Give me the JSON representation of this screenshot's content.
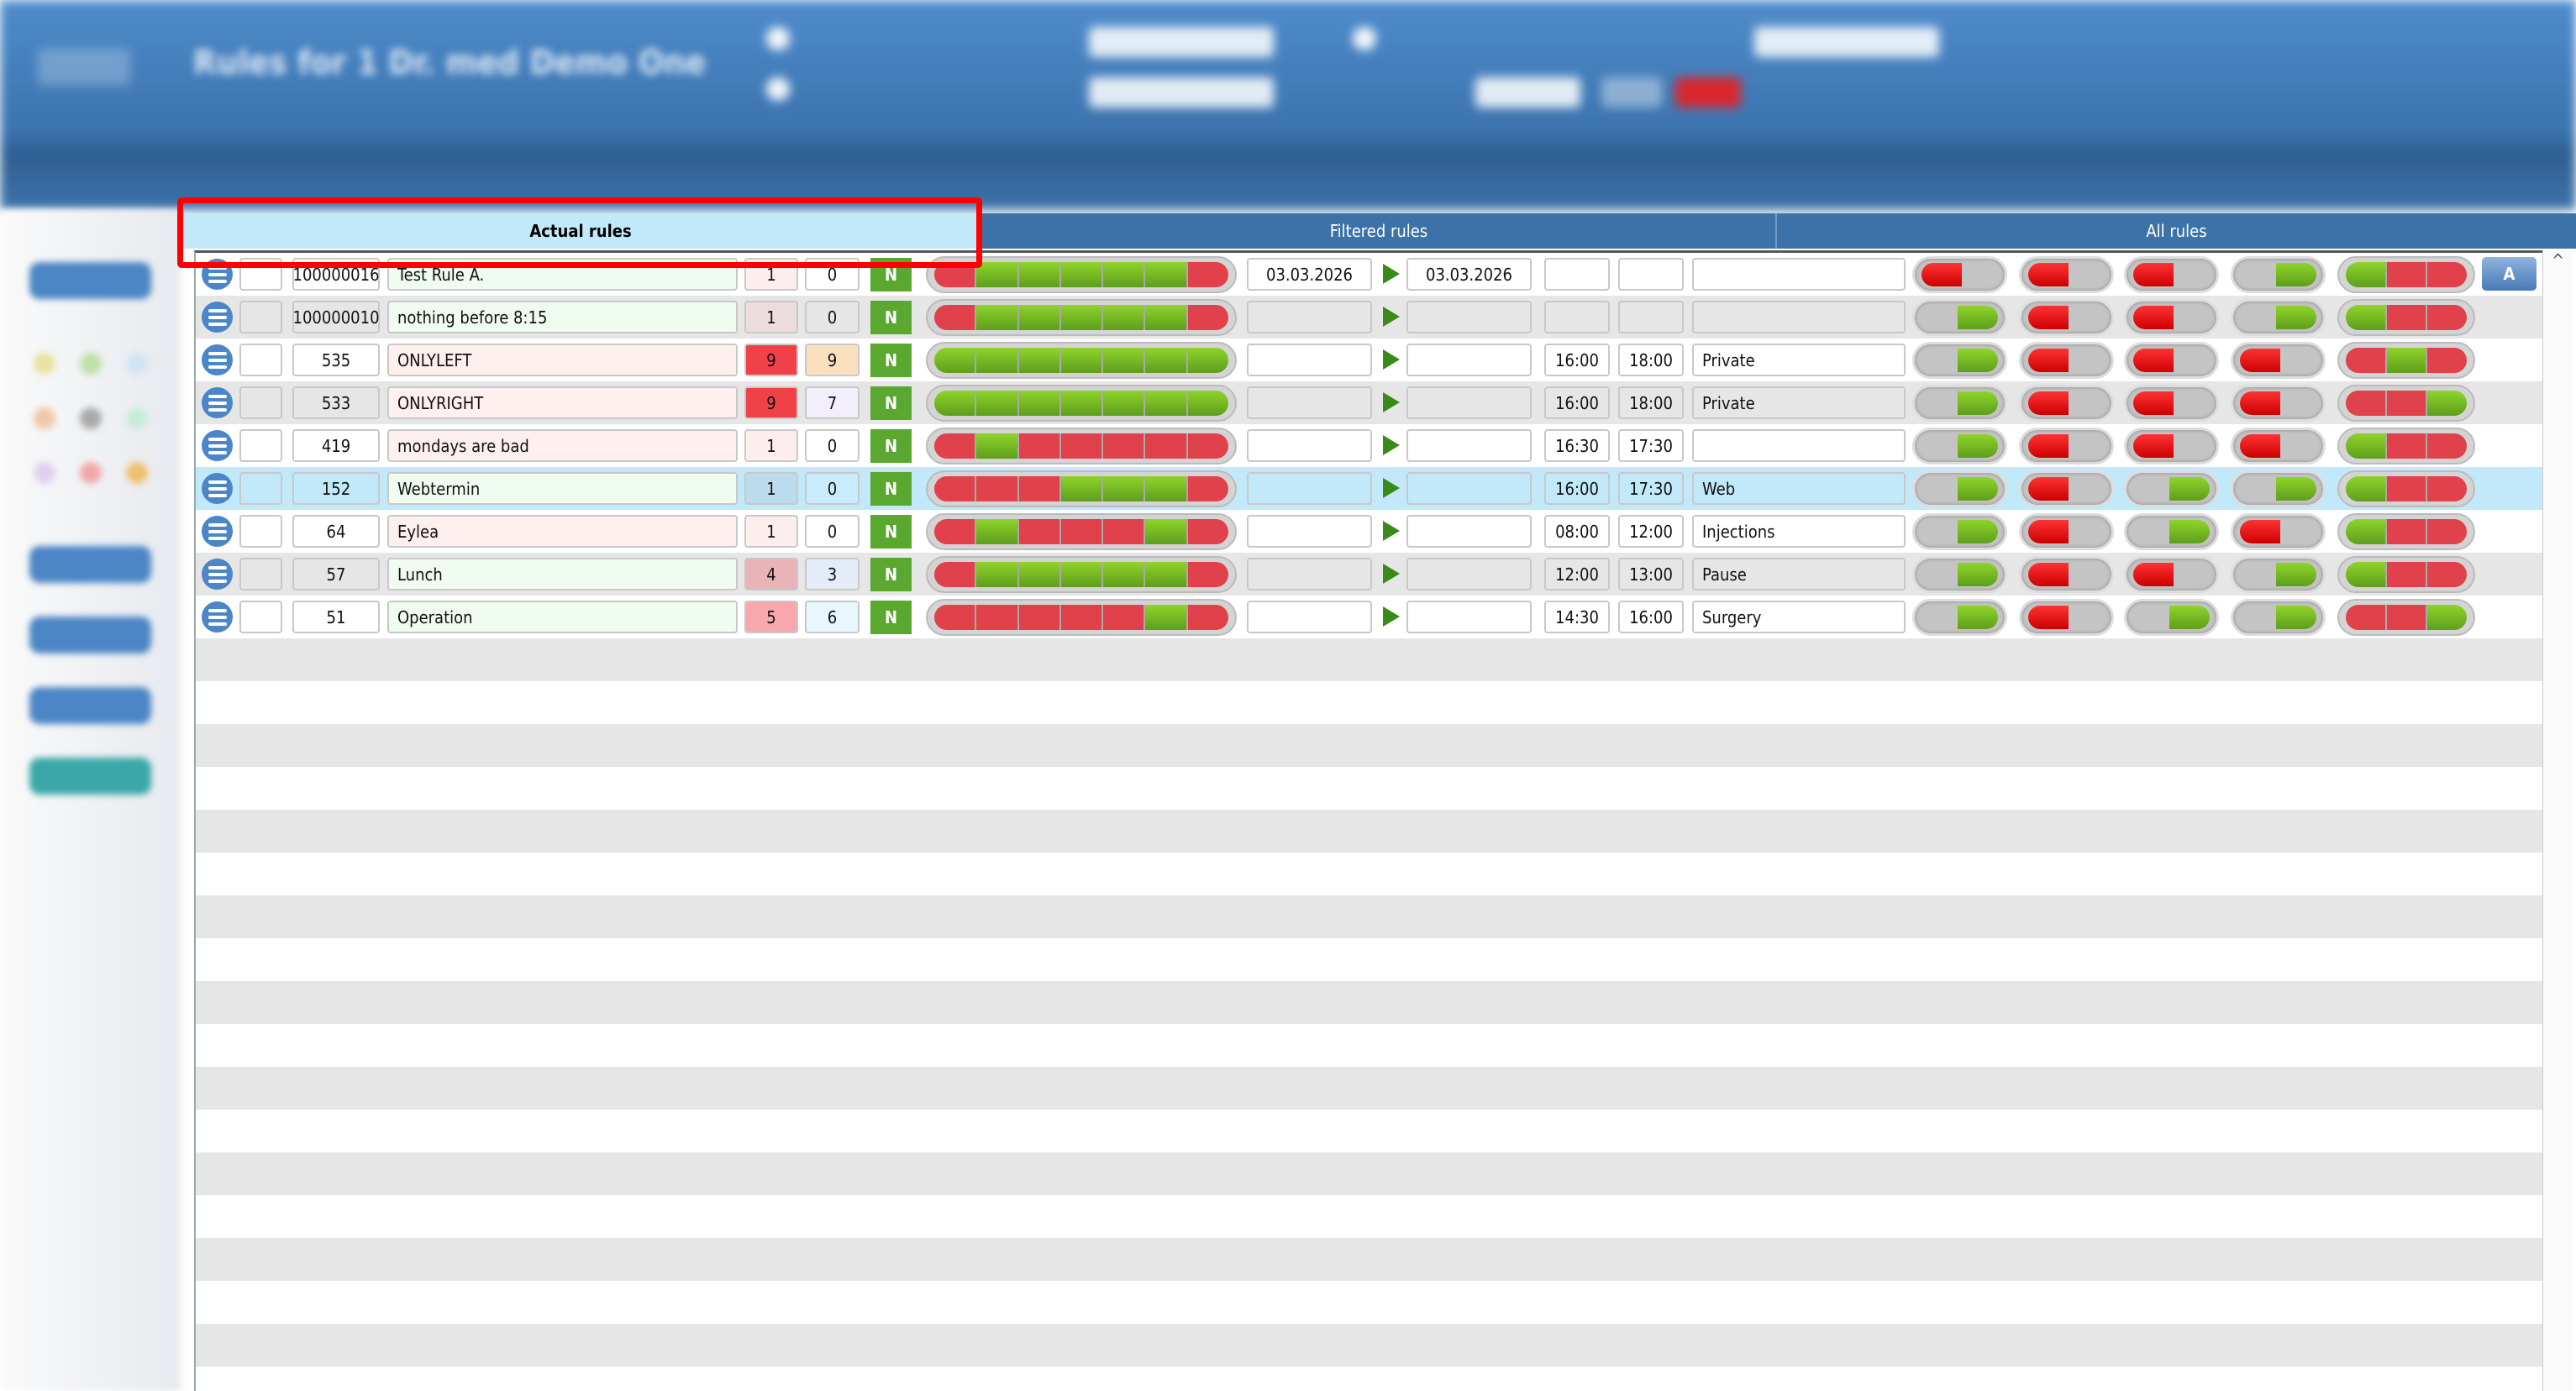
{
  "header": {
    "title": "Rules for 1 Dr. med Demo One"
  },
  "tabs": [
    {
      "label": "Actual rules",
      "active": true
    },
    {
      "label": "Filtered rules",
      "active": false
    },
    {
      "label": "All rules",
      "active": false
    }
  ],
  "colors": {
    "green": "#5aa830",
    "red": "#e0414a",
    "selected_row": "#c2e9fa",
    "tab_bar": "#3d72a8"
  },
  "action_button_label": "A",
  "n_label": "N",
  "rows": [
    {
      "id": "100000016",
      "name": "Test Rule A.",
      "c1": "1",
      "c2": "0",
      "week": [
        0,
        1,
        1,
        1,
        1,
        1,
        0
      ],
      "date_from": "03.03.2026",
      "date_to": "03.03.2026",
      "time_from": "",
      "time_to": "",
      "label": "",
      "toggles": [
        0,
        0,
        0,
        1
      ],
      "tri": [
        1,
        0,
        0
      ],
      "name_bg": "#f0fcf0",
      "c1_bg": "#fdeeee",
      "c2_bg": "#ffffff"
    },
    {
      "id": "100000010",
      "name": "nothing before 8:15",
      "c1": "1",
      "c2": "0",
      "week": [
        0,
        1,
        1,
        1,
        1,
        1,
        0
      ],
      "date_from": "",
      "date_to": "",
      "time_from": "",
      "time_to": "",
      "label": "",
      "toggles": [
        1,
        0,
        0,
        1
      ],
      "tri": [
        1,
        0,
        0
      ],
      "name_bg": "#f0fcf0",
      "c1_bg": "#ecdcdc",
      "c2_bg": "#e6e6e6"
    },
    {
      "id": "535",
      "name": "ONLYLEFT",
      "c1": "9",
      "c2": "9",
      "week": [
        1,
        1,
        1,
        1,
        1,
        1,
        1
      ],
      "date_from": "",
      "date_to": "",
      "time_from": "16:00",
      "time_to": "18:00",
      "label": "Private",
      "toggles": [
        1,
        0,
        0,
        0
      ],
      "tri": [
        0,
        1,
        0
      ],
      "name_bg": "#fdf0ee",
      "c1_bg": "#f04048",
      "c2_bg": "#fbe0c0"
    },
    {
      "id": "533",
      "name": "ONLYRIGHT",
      "c1": "9",
      "c2": "7",
      "week": [
        1,
        1,
        1,
        1,
        1,
        1,
        1
      ],
      "date_from": "",
      "date_to": "",
      "time_from": "16:00",
      "time_to": "18:00",
      "label": "Private",
      "toggles": [
        1,
        0,
        0,
        0
      ],
      "tri": [
        0,
        0,
        1
      ],
      "name_bg": "#fdf0ee",
      "c1_bg": "#f04048",
      "c2_bg": "#f3eefc"
    },
    {
      "id": "419",
      "name": "mondays are bad",
      "c1": "1",
      "c2": "0",
      "week": [
        0,
        1,
        0,
        0,
        0,
        0,
        0
      ],
      "date_from": "",
      "date_to": "",
      "time_from": "16:30",
      "time_to": "17:30",
      "label": "",
      "toggles": [
        1,
        0,
        0,
        0
      ],
      "tri": [
        1,
        0,
        0
      ],
      "name_bg": "#fdf0ee",
      "c1_bg": "#fdeeee",
      "c2_bg": "#ffffff"
    },
    {
      "id": "152",
      "name": "Webtermin",
      "c1": "1",
      "c2": "0",
      "week": [
        0,
        0,
        0,
        1,
        1,
        1,
        0
      ],
      "date_from": "",
      "date_to": "",
      "time_from": "16:00",
      "time_to": "17:30",
      "label": "Web",
      "toggles": [
        1,
        0,
        1,
        1
      ],
      "tri": [
        1,
        0,
        0
      ],
      "name_bg": "#f0fcf0",
      "c1_bg": "#bcdcee",
      "c2_bg": "#c8ecfc",
      "selected": true
    },
    {
      "id": "64",
      "name": "Eylea",
      "c1": "1",
      "c2": "0",
      "week": [
        0,
        1,
        0,
        0,
        0,
        1,
        0
      ],
      "date_from": "",
      "date_to": "",
      "time_from": "08:00",
      "time_to": "12:00",
      "label": "Injections",
      "toggles": [
        1,
        0,
        1,
        0
      ],
      "tri": [
        1,
        0,
        0
      ],
      "name_bg": "#fdf0ee",
      "c1_bg": "#fdeeee",
      "c2_bg": "#ffffff"
    },
    {
      "id": "57",
      "name": "Lunch",
      "c1": "4",
      "c2": "3",
      "week": [
        0,
        1,
        1,
        1,
        1,
        1,
        0
      ],
      "date_from": "",
      "date_to": "",
      "time_from": "12:00",
      "time_to": "13:00",
      "label": "Pause",
      "toggles": [
        1,
        0,
        0,
        1
      ],
      "tri": [
        1,
        0,
        0
      ],
      "name_bg": "#f0fcf0",
      "c1_bg": "#e8b4b8",
      "c2_bg": "#e4ecfa"
    },
    {
      "id": "51",
      "name": "Operation",
      "c1": "5",
      "c2": "6",
      "week": [
        0,
        0,
        0,
        0,
        0,
        1,
        0
      ],
      "date_from": "",
      "date_to": "",
      "time_from": "14:30",
      "time_to": "16:00",
      "label": "Surgery",
      "toggles": [
        1,
        0,
        1,
        1
      ],
      "tri": [
        0,
        0,
        1
      ],
      "name_bg": "#f0fcf0",
      "c1_bg": "#f8a8ac",
      "c2_bg": "#e8f6fd"
    }
  ]
}
